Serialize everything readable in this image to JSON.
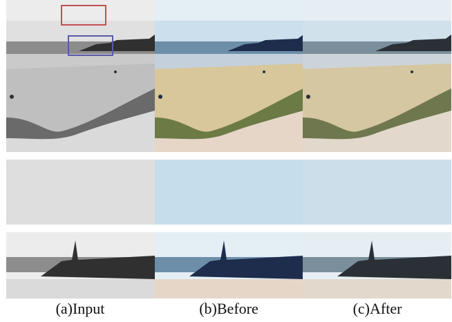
{
  "captions": [
    "(a)Input",
    "(b)Before",
    "(c)After"
  ]
}
